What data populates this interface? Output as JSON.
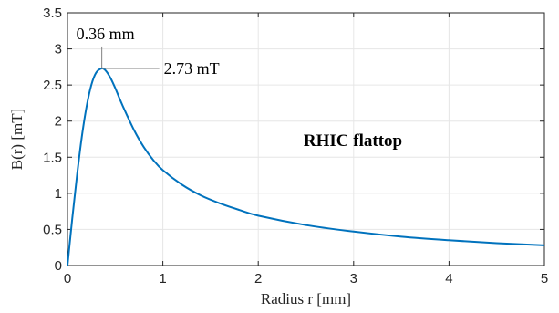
{
  "chart_data": {
    "type": "line",
    "title": "RHIC flattop",
    "xlabel": "Radius r [mm]",
    "ylabel": "B(r) [mT]",
    "xlim": [
      0,
      5
    ],
    "ylim": [
      0,
      3.5
    ],
    "xticks": [
      0,
      1,
      2,
      3,
      4,
      5
    ],
    "xtick_labels": [
      "0",
      "1",
      "2",
      "3",
      "4",
      "5"
    ],
    "yticks": [
      0,
      0.5,
      1,
      1.5,
      2,
      2.5,
      3,
      3.5
    ],
    "ytick_labels": [
      "0",
      "0.5",
      "1",
      "1.5",
      "2",
      "2.5",
      "3",
      "3.5"
    ],
    "grid": true,
    "line_color": "#0072BD",
    "peak": {
      "x": 0.36,
      "y": 2.73,
      "x_label": "0.36 mm",
      "y_label": "2.73 mT"
    },
    "series": [
      {
        "x": [
          0,
          0.05,
          0.1,
          0.15,
          0.2,
          0.25,
          0.3,
          0.36,
          0.4,
          0.45,
          0.5,
          0.55,
          0.6,
          0.7,
          0.8,
          0.9,
          1.0,
          1.2,
          1.4,
          1.6,
          1.8,
          2.0,
          2.5,
          3.0,
          3.5,
          4.0,
          4.5,
          5.0
        ],
        "y": [
          0,
          0.65,
          1.25,
          1.78,
          2.2,
          2.5,
          2.67,
          2.73,
          2.7,
          2.6,
          2.46,
          2.3,
          2.15,
          1.87,
          1.64,
          1.46,
          1.32,
          1.12,
          0.97,
          0.86,
          0.77,
          0.69,
          0.56,
          0.47,
          0.4,
          0.35,
          0.31,
          0.28
        ]
      }
    ]
  }
}
